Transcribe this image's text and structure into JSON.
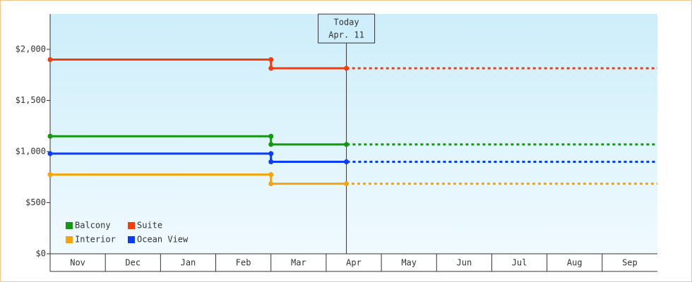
{
  "chart_data": {
    "type": "step-line",
    "categories": [
      "Nov",
      "Dec",
      "Jan",
      "Feb",
      "Mar",
      "Apr",
      "May",
      "Jun",
      "Jul",
      "Aug",
      "Sep"
    ],
    "series": [
      {
        "name": "Balcony",
        "color": "#13980f",
        "values": [
          1150,
          1150,
          1150,
          1150,
          1070,
          1070,
          1070,
          1070,
          1070,
          1070,
          1070
        ]
      },
      {
        "name": "Suite",
        "color": "#f53c0a",
        "values": [
          1900,
          1900,
          1900,
          1900,
          1815,
          1815,
          1815,
          1815,
          1815,
          1815,
          1815
        ]
      },
      {
        "name": "Interior",
        "color": "#f5a40a",
        "values": [
          775,
          775,
          775,
          775,
          685,
          685,
          685,
          685,
          685,
          685,
          685
        ]
      },
      {
        "name": "Ocean View",
        "color": "#0a3cf5",
        "values": [
          980,
          980,
          980,
          980,
          900,
          900,
          900,
          900,
          900,
          900,
          900
        ]
      }
    ],
    "ylim": [
      0,
      2345
    ],
    "yticks": [
      {
        "value": 0,
        "label": "$0"
      },
      {
        "value": 500,
        "label": "$500"
      },
      {
        "value": 1000,
        "label": "$1,000"
      },
      {
        "value": 1500,
        "label": "$1,500"
      },
      {
        "value": 2000,
        "label": "$2,000"
      }
    ],
    "today": {
      "label": "Today",
      "date": "Apr. 11",
      "category": 5,
      "day": 11
    },
    "legend": "bottom-left"
  }
}
